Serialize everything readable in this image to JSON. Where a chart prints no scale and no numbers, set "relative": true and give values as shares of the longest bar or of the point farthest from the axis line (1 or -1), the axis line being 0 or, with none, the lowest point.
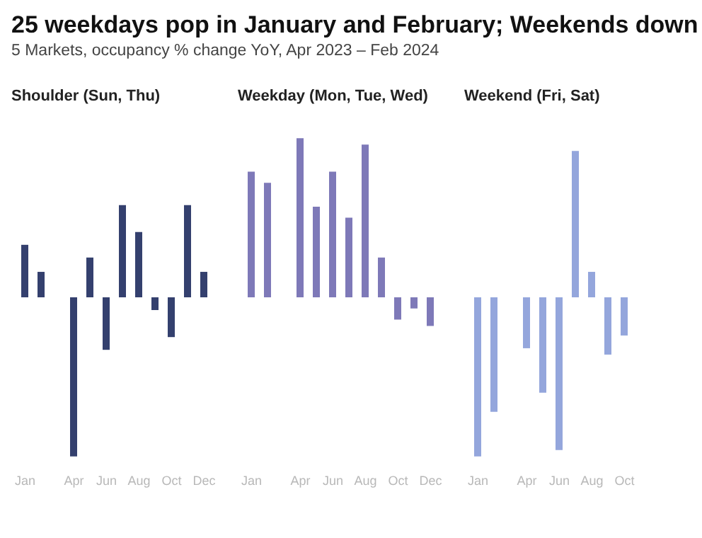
{
  "chart_data": [
    {
      "type": "bar",
      "title": "Shoulder (Sun, Thu)",
      "annotations": [
        "25 weekdays pop in January and February; Weekends down",
        "5 Markets, occupancy % change YoY, Apr 2023 – Feb 2024"
      ],
      "relative": true,
      "color": "#34406e",
      "tick_labels": "x",
      "categories": [
        "Jan",
        null,
        null,
        "Apr",
        null,
        "Jun",
        null,
        "Aug",
        null,
        "Oct",
        null,
        "Dec"
      ],
      "values": [
        0.33,
        0.16,
        null,
        -1,
        0.25,
        -0.33,
        0.58,
        0.41,
        -0.08,
        -0.25,
        0.58,
        0.16
      ]
    },
    {
      "type": "bar",
      "title": "Weekday (Mon, Tue, Wed)",
      "relative": true,
      "color": "#7e79b8",
      "tick_labels": "x",
      "categories": [
        "Jan",
        null,
        null,
        "Apr",
        null,
        "Jun",
        null,
        "Aug",
        null,
        "Oct",
        null,
        "Dec"
      ],
      "values": [
        0.79,
        0.72,
        null,
        1,
        0.57,
        0.79,
        0.5,
        0.96,
        0.25,
        -0.14,
        -0.07,
        -0.18
      ]
    },
    {
      "type": "bar",
      "title": "Weekend (Fri, Sat)",
      "relative": true,
      "color": "#94a6dc",
      "tick_labels": "x",
      "categories": [
        "Jan",
        null,
        null,
        "Apr",
        null,
        "Jun",
        null,
        "Aug",
        null,
        "Oct"
      ],
      "values": [
        -1,
        -0.72,
        null,
        -0.32,
        -0.6,
        -0.96,
        0.92,
        0.16,
        -0.36,
        -0.24
      ]
    }
  ]
}
